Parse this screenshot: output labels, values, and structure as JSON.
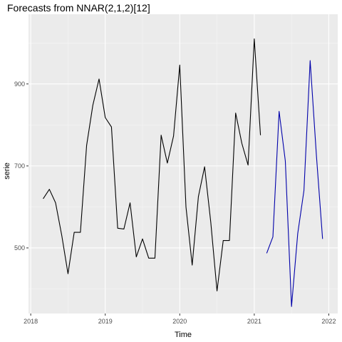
{
  "chart_data": {
    "type": "line",
    "title": "Forecasts from NNAR(2,1,2)[12]",
    "xlabel": "Time",
    "ylabel": "serie",
    "xlim": [
      2017.97,
      2022.12
    ],
    "ylim": [
      340,
      1070
    ],
    "x_ticks": [
      2018,
      2019,
      2020,
      2021,
      2022
    ],
    "y_ticks": [
      500,
      700,
      900
    ],
    "x_tick_labels": [
      "2018",
      "2019",
      "2020",
      "2021",
      "2022"
    ],
    "y_tick_labels": [
      "500",
      "700",
      "900"
    ],
    "grid": true,
    "series": [
      {
        "role": "observed",
        "color": "#000000",
        "x": [
          2018.1667,
          2018.25,
          2018.3333,
          2018.4167,
          2018.5,
          2018.5833,
          2018.6667,
          2018.75,
          2018.8333,
          2018.9167,
          2019.0,
          2019.0833,
          2019.1667,
          2019.25,
          2019.3333,
          2019.4167,
          2019.5,
          2019.5833,
          2019.6667,
          2019.75,
          2019.8333,
          2019.9167,
          2020.0,
          2020.0833,
          2020.1667,
          2020.25,
          2020.3333,
          2020.4167,
          2020.5,
          2020.5833,
          2020.6667,
          2020.75,
          2020.8333,
          2020.9167,
          2021.0,
          2021.0833
        ],
        "y": [
          620,
          643,
          610,
          530,
          437,
          538,
          538,
          750,
          848,
          912,
          818,
          795,
          548,
          546,
          610,
          478,
          522,
          475,
          475,
          775,
          707,
          773,
          946,
          600,
          458,
          625,
          698,
          562,
          395,
          518,
          518,
          829,
          755,
          702,
          1010,
          775
        ]
      },
      {
        "role": "forecast",
        "color": "#0000aa",
        "x": [
          2021.1667,
          2021.25,
          2021.3333,
          2021.4167,
          2021.5,
          2021.5833,
          2021.6667,
          2021.75,
          2021.8333,
          2021.9167
        ],
        "y": [
          487,
          527,
          833,
          712,
          357,
          535,
          640,
          957,
          727,
          522
        ]
      }
    ]
  },
  "colors": {
    "panel": "#ebebeb",
    "grid_major": "#ffffff",
    "grid_minor": "#f5f5f5",
    "tick": "#333333"
  }
}
